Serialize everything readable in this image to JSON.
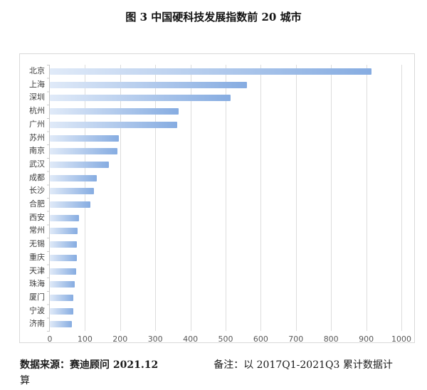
{
  "title": "图 3 中国硬科技发展指数前 20 城市",
  "chart_data": {
    "type": "bar",
    "orientation": "horizontal",
    "title": "图 3 中国硬科技发展指数前 20 城市",
    "categories": [
      "北京",
      "上海",
      "深圳",
      "杭州",
      "广州",
      "苏州",
      "南京",
      "武汉",
      "成都",
      "长沙",
      "合肥",
      "西安",
      "常州",
      "无锡",
      "重庆",
      "天津",
      "珠海",
      "厦门",
      "宁波",
      "济南"
    ],
    "values": [
      915,
      560,
      515,
      367,
      362,
      196,
      192,
      168,
      133,
      126,
      116,
      83,
      79,
      77,
      76,
      74,
      70,
      67,
      66,
      63
    ],
    "xlabel": "",
    "ylabel": "",
    "xlim": [
      0,
      1000
    ],
    "x_ticks": [
      0,
      100,
      200,
      300,
      400,
      500,
      600,
      700,
      800,
      900,
      1000
    ],
    "grid": "vertical",
    "legend": "none",
    "colors": {
      "bar_gradient_start": "#e0eaf8",
      "bar_gradient_end": "#86ace1",
      "gridline": "#dcdcdc",
      "frame_border": "#d9d9d9",
      "axis_label": "#595959",
      "category_label": "#3d3d3d"
    }
  },
  "footer": {
    "source_label": "数据来源：赛迪顾问 2021.12",
    "note_line1": "备注：以 2017Q1-2021Q3 累计数据计",
    "note_line2": "算"
  }
}
